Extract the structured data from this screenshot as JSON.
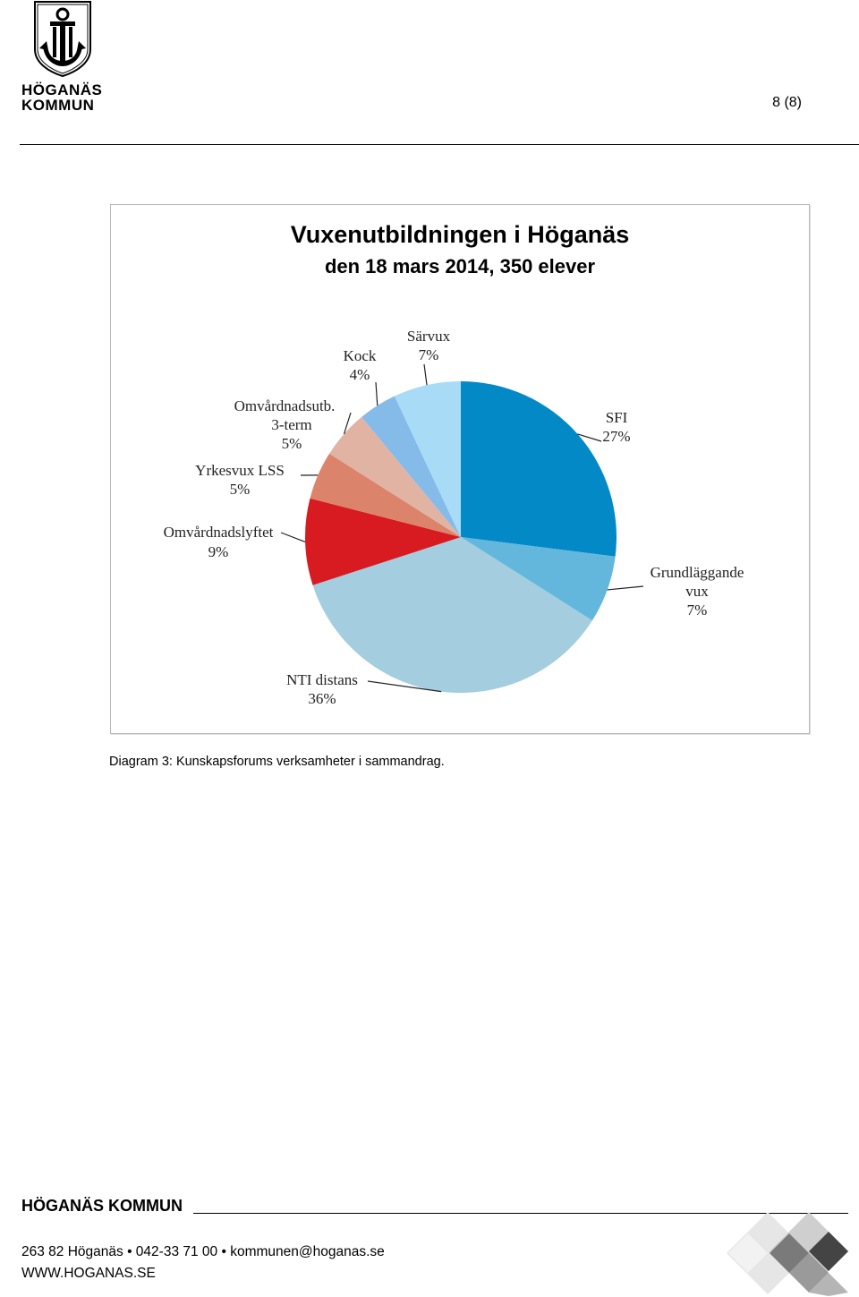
{
  "header": {
    "logo_line1": "HÖGANÄS",
    "logo_line2": "KOMMUN",
    "page_number": "8 (8)"
  },
  "chart_data": {
    "type": "pie",
    "title": "Vuxenutbildningen i Höganäs",
    "subtitle": "den 18 mars 2014, 350 elever",
    "slices": [
      {
        "name": "SFI",
        "label": "SFI",
        "value": 27,
        "pct": "27%",
        "color": "#0489c7"
      },
      {
        "name": "Grundläggande vux",
        "label_lines": [
          "Grundläggande",
          "vux"
        ],
        "value": 7,
        "pct": "7%",
        "color": "#64b7dc"
      },
      {
        "name": "NTI distans",
        "label": "NTI distans",
        "value": 36,
        "pct": "36%",
        "color": "#a4cddf"
      },
      {
        "name": "Omvårdnadslyftet",
        "label": "Omvårdnadslyftet",
        "value": 9,
        "pct": "9%",
        "color": "#d81a21"
      },
      {
        "name": "Yrkesvux LSS",
        "label": "Yrkesvux LSS",
        "value": 5,
        "pct": "5%",
        "color": "#dc836b"
      },
      {
        "name": "Omvårdnadsutb. 3-term",
        "label_lines": [
          "Omvårdnadsutb.",
          "3-term"
        ],
        "value": 5,
        "pct": "5%",
        "color": "#e1b3a3"
      },
      {
        "name": "Kock",
        "label": "Kock",
        "value": 4,
        "pct": "4%",
        "color": "#85bbe8"
      },
      {
        "name": "Särvux",
        "label": "Särvux",
        "value": 7,
        "pct": "7%",
        "color": "#a8dcf6"
      }
    ]
  },
  "caption": "Diagram 3: Kunskapsforums verksamheter i sammandrag.",
  "footer": {
    "brand": "HÖGANÄS KOMMUN",
    "contact": "263 82 Höganäs • 042-33 71 00 • kommunen@hoganas.se",
    "website": "WWW.HOGANAS.SE"
  }
}
